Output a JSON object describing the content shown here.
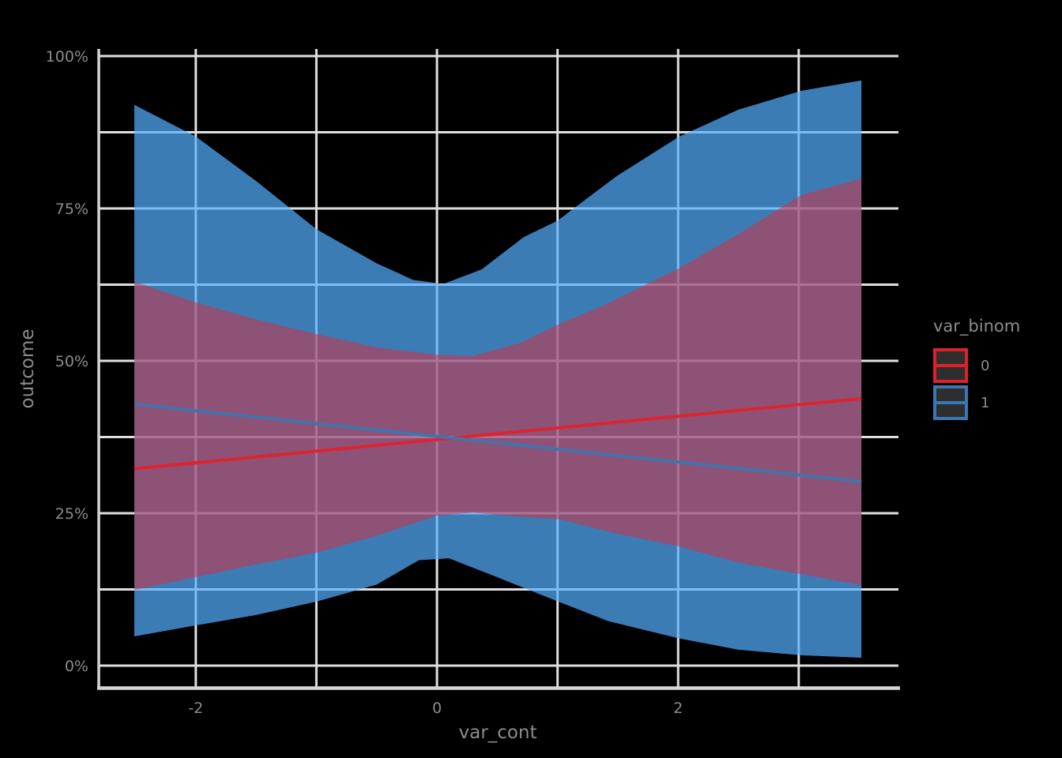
{
  "chart_data": {
    "type": "line",
    "title": "",
    "xlabel": "var_cont",
    "ylabel": "outcome",
    "x_range_shown": [
      -2.81,
      3.83
    ],
    "y_range_shown_pct": [
      -3.9,
      101.2
    ],
    "x_gridlines": [
      -2,
      -1,
      0,
      1,
      2,
      3
    ],
    "y_gridlines_pct": [
      0,
      12.5,
      25,
      37.5,
      50,
      62.5,
      75,
      87.5,
      100
    ],
    "x_ticks": [
      {
        "value": -2,
        "label": "-2"
      },
      {
        "value": 0,
        "label": "0"
      },
      {
        "value": 2,
        "label": "2"
      }
    ],
    "y_ticks": [
      {
        "value": 0,
        "label": "0%"
      },
      {
        "value": 25,
        "label": "25%"
      },
      {
        "value": 50,
        "label": "50%"
      },
      {
        "value": 75,
        "label": "75%"
      },
      {
        "value": 100,
        "label": "100%"
      }
    ],
    "legend_position": "right",
    "grid": "on",
    "series": [
      {
        "name": "0",
        "line_color": "#DC2430",
        "ribbon_color": "rgba(222,40,56,0.50)",
        "line": [
          [
            -2.51,
            32.3
          ],
          [
            3.52,
            43.8
          ]
        ],
        "ribbon_upper": [
          [
            -2.51,
            63.0
          ],
          [
            -2.0,
            59.6
          ],
          [
            -1.5,
            56.8
          ],
          [
            -1.0,
            54.4
          ],
          [
            -0.5,
            52.2
          ],
          [
            0.0,
            51.0
          ],
          [
            0.3,
            50.8
          ],
          [
            0.7,
            53.0
          ],
          [
            1.02,
            56.1
          ],
          [
            1.36,
            58.9
          ],
          [
            2.0,
            65.1
          ],
          [
            2.5,
            70.8
          ],
          [
            3.02,
            77.2
          ],
          [
            3.52,
            79.9
          ]
        ],
        "ribbon_lower": [
          [
            -2.51,
            12.4
          ],
          [
            -2.0,
            14.5
          ],
          [
            -1.5,
            16.6
          ],
          [
            -1.0,
            18.5
          ],
          [
            -0.5,
            21.3
          ],
          [
            0.0,
            24.6
          ],
          [
            0.3,
            25.1
          ],
          [
            0.7,
            24.4
          ],
          [
            1.02,
            24.0
          ],
          [
            1.5,
            21.6
          ],
          [
            2.0,
            19.6
          ],
          [
            2.5,
            16.9
          ],
          [
            3.02,
            15.0
          ],
          [
            3.52,
            13.2
          ]
        ]
      },
      {
        "name": "1",
        "line_color": "#4173AD",
        "ribbon_color": "rgba(84,174,255,0.71)",
        "line": [
          [
            -2.51,
            42.9
          ],
          [
            3.52,
            30.2
          ]
        ],
        "ribbon_upper": [
          [
            -2.51,
            92.0
          ],
          [
            -2.0,
            86.8
          ],
          [
            -1.5,
            79.5
          ],
          [
            -1.0,
            71.6
          ],
          [
            -0.5,
            66.0
          ],
          [
            -0.2,
            63.3
          ],
          [
            0.05,
            62.6
          ],
          [
            0.37,
            65.0
          ],
          [
            0.72,
            70.3
          ],
          [
            1.0,
            73.0
          ],
          [
            1.49,
            80.3
          ],
          [
            2.01,
            86.8
          ],
          [
            2.5,
            91.2
          ],
          [
            3.02,
            94.3
          ],
          [
            3.52,
            96.0
          ]
        ],
        "ribbon_lower": [
          [
            -2.51,
            4.8
          ],
          [
            -2.0,
            6.6
          ],
          [
            -1.5,
            8.3
          ],
          [
            -1.0,
            10.5
          ],
          [
            -0.5,
            13.3
          ],
          [
            -0.15,
            17.3
          ],
          [
            0.1,
            17.6
          ],
          [
            0.5,
            14.5
          ],
          [
            1.02,
            10.4
          ],
          [
            1.42,
            7.3
          ],
          [
            2.0,
            4.5
          ],
          [
            2.5,
            2.6
          ],
          [
            3.02,
            1.7
          ],
          [
            3.52,
            1.3
          ]
        ]
      }
    ]
  },
  "legend": {
    "title": "var_binom",
    "key_fill": "#2e2e2e",
    "entries": [
      {
        "label": "0",
        "color": "#E02028"
      },
      {
        "label": "1",
        "color": "#3778B5"
      }
    ]
  },
  "colors": {
    "background": "#000000",
    "grid": "#DFDFDF",
    "axis_line": "#D6D6D6",
    "text": "#8C8C8C"
  }
}
